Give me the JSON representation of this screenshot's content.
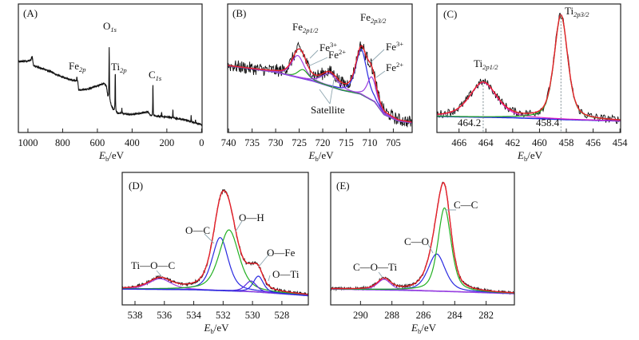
{
  "chart_data": [
    {
      "id": "A",
      "type": "line",
      "panel_label": "(A)",
      "xlim": [
        1055,
        -3
      ],
      "ylim": [
        0,
        100
      ],
      "grid": false,
      "xticks": [
        1000,
        800,
        600,
        400,
        200,
        0
      ],
      "xlabel": {
        "symbol": "E",
        "subscript": "b",
        "unit": "/eV"
      },
      "colors": {
        "data": "#111111"
      },
      "baseline": [
        [
          1055,
          55
        ],
        [
          985,
          56
        ],
        [
          975,
          59
        ],
        [
          968,
          52
        ],
        [
          900,
          49
        ],
        [
          850,
          46
        ],
        [
          800,
          43
        ],
        [
          720,
          40
        ],
        [
          713,
          40
        ],
        [
          708,
          33
        ],
        [
          650,
          34
        ],
        [
          560,
          38
        ],
        [
          548,
          36
        ],
        [
          540,
          28
        ],
        [
          520,
          21
        ],
        [
          505,
          17
        ],
        [
          480,
          15
        ],
        [
          400,
          14
        ],
        [
          310,
          16
        ],
        [
          292,
          13
        ],
        [
          200,
          12
        ],
        [
          100,
          10
        ],
        [
          30,
          7
        ],
        [
          -3,
          6
        ]
      ],
      "peaks": [
        {
          "center": 532,
          "height": 42,
          "fwhm": 3,
          "label": {
            "base": "O",
            "sub": "1s"
          }
        },
        {
          "center": 497,
          "height": 30,
          "fwhm": 3,
          "label": {
            "base": "Ti",
            "sub": "2p"
          }
        },
        {
          "center": 718,
          "height": 3,
          "fwhm": 3,
          "label": {
            "base": "Fe",
            "sub": "2p"
          }
        },
        {
          "center": 280,
          "height": 25,
          "fwhm": 2.5,
          "label": {
            "base": "C",
            "sub": "1s"
          }
        },
        {
          "center": 459,
          "height": 4,
          "fwhm": 3
        },
        {
          "center": 230,
          "height": 3,
          "fwhm": 3
        },
        {
          "center": 165,
          "height": 6,
          "fwhm": 2.5
        },
        {
          "center": 60,
          "height": 5,
          "fwhm": 2.5
        },
        {
          "center": 35,
          "height": 3,
          "fwhm": 2.5
        }
      ]
    },
    {
      "id": "B",
      "type": "line",
      "panel_label": "(B)",
      "xlim": [
        740.2,
        701
      ],
      "ylim": [
        0,
        100
      ],
      "grid": false,
      "xticks": [
        740,
        735,
        730,
        725,
        720,
        715,
        710,
        705
      ],
      "xlabel": {
        "symbol": "E",
        "subscript": "b",
        "unit": "/eV"
      },
      "colors": {
        "data": "#111111",
        "envelope": "#e8202a",
        "background": "#3a3ad8"
      },
      "background": [
        [
          740.2,
          52
        ],
        [
          730,
          47
        ],
        [
          722,
          40
        ],
        [
          716,
          33
        ],
        [
          712,
          30
        ],
        [
          709,
          24
        ],
        [
          707,
          14
        ],
        [
          704,
          9
        ],
        [
          701,
          7.5
        ]
      ],
      "components": [
        {
          "name": "Fe3+ 2p3/2",
          "center": 711.8,
          "height": 35,
          "fwhm": 2.8,
          "color": "#2a2ae0"
        },
        {
          "name": "Fe2+ 2p3/2",
          "center": 709.6,
          "height": 18,
          "fwhm": 2.2,
          "color": "#9a3ee0"
        },
        {
          "name": "Fe3+ 2p1/2",
          "center": 725.3,
          "height": 17,
          "fwhm": 3.2,
          "color": "#a040e0"
        },
        {
          "name": "Fe2+ 2p1/2",
          "center": 724.2,
          "height": 7,
          "fwhm": 2.6,
          "color": "#22a822"
        },
        {
          "name": "Satellite",
          "center": 718.5,
          "height": 10,
          "fwhm": 4,
          "color": "#a040e0"
        }
      ],
      "annotations": {
        "fe2p12": {
          "base": "Fe",
          "sub": "2p1/2"
        },
        "fe2p32": {
          "base": "Fe",
          "sub": "2p3/2"
        },
        "fe3_left": {
          "base": "Fe",
          "sup": "3+"
        },
        "fe2_left": {
          "base": "Fe",
          "sup": "2+"
        },
        "fe3_right": {
          "base": "Fe",
          "sup": "3+"
        },
        "fe2_right": {
          "base": "Fe",
          "sup": "2+"
        },
        "satellite": "Satellite"
      }
    },
    {
      "id": "C",
      "type": "line",
      "panel_label": "(C)",
      "xlim": [
        467.65,
        453.95
      ],
      "ylim": [
        0,
        100
      ],
      "grid": false,
      "xticks": [
        466,
        464,
        462,
        460,
        458,
        456,
        454
      ],
      "xlabel": {
        "symbol": "E",
        "subscript": "b",
        "unit": "/eV"
      },
      "colors": {
        "data": "#111111",
        "envelope": "#e8202a",
        "background": "#2a2ae0"
      },
      "background": [
        [
          467.65,
          12.5
        ],
        [
          462,
          11.5
        ],
        [
          458,
          10
        ],
        [
          453.95,
          9
        ]
      ],
      "components": [
        {
          "name": "Ti2p1/2",
          "center": 464.2,
          "height": 27,
          "fwhm": 2.4,
          "color": "#e020c8"
        },
        {
          "name": "Ti2p3/2",
          "center": 458.4,
          "height": 81,
          "fwhm": 1.2,
          "color": "#22a822"
        }
      ],
      "peak_markers": [
        {
          "position": 464.2,
          "label": "464.2"
        },
        {
          "position": 458.4,
          "label": "458.4"
        }
      ],
      "annotations": {
        "ti2p12": {
          "base": "Ti",
          "sub": "2p1/2"
        },
        "ti2p32": {
          "base": "Ti",
          "sub": "2p3/2"
        }
      }
    },
    {
      "id": "D",
      "type": "line",
      "panel_label": "(D)",
      "xlim": [
        538.87,
        526.2
      ],
      "ylim": [
        0,
        100
      ],
      "grid": false,
      "xticks": [
        538,
        536,
        534,
        532,
        530,
        528
      ],
      "xlabel": {
        "symbol": "E",
        "subscript": "b",
        "unit": "/eV"
      },
      "colors": {
        "data": "#111111",
        "envelope": "#e8202a",
        "background": "#3a3ad8"
      },
      "background": [
        [
          538.87,
          12
        ],
        [
          534,
          11.5
        ],
        [
          530,
          10
        ],
        [
          526.2,
          7
        ]
      ],
      "components": [
        {
          "name": "Ti—O—C",
          "center": 536.3,
          "height": 8,
          "fwhm": 1.8,
          "color": "#a040e0"
        },
        {
          "name": "O—C",
          "center": 532.2,
          "height": 40,
          "fwhm": 1.3,
          "color": "#2a2ae0"
        },
        {
          "name": "O—H",
          "center": 531.6,
          "height": 46,
          "fwhm": 1.6,
          "color": "#22b022"
        },
        {
          "name": "O—Ti",
          "center": 530.1,
          "height": 8,
          "fwhm": 0.9,
          "color": "#5a2ae0"
        },
        {
          "name": "O—Fe",
          "center": 529.6,
          "height": 12,
          "fwhm": 0.8,
          "color": "#2a2ae0"
        }
      ]
    },
    {
      "id": "E",
      "type": "line",
      "panel_label": "(E)",
      "xlim": [
        291.9,
        280.2
      ],
      "ylim": [
        0,
        100
      ],
      "grid": false,
      "xticks": [
        290,
        288,
        286,
        284,
        282
      ],
      "xlabel": {
        "symbol": "E",
        "subscript": "b",
        "unit": "/eV"
      },
      "colors": {
        "data": "#111111",
        "envelope": "#e8202a",
        "background": "#7a3ae0"
      },
      "background": [
        [
          291.9,
          12
        ],
        [
          287,
          11
        ],
        [
          284,
          10
        ],
        [
          280.2,
          8.5
        ]
      ],
      "components": [
        {
          "name": "C—O—Ti",
          "center": 288.5,
          "height": 8,
          "fwhm": 1.0,
          "color": "#a040e0"
        },
        {
          "name": "C—O",
          "center": 285.15,
          "height": 28,
          "fwhm": 1.3,
          "color": "#2a2ae0"
        },
        {
          "name": "C—C",
          "center": 284.65,
          "height": 63,
          "fwhm": 1.0,
          "color": "#22b022"
        }
      ]
    }
  ]
}
